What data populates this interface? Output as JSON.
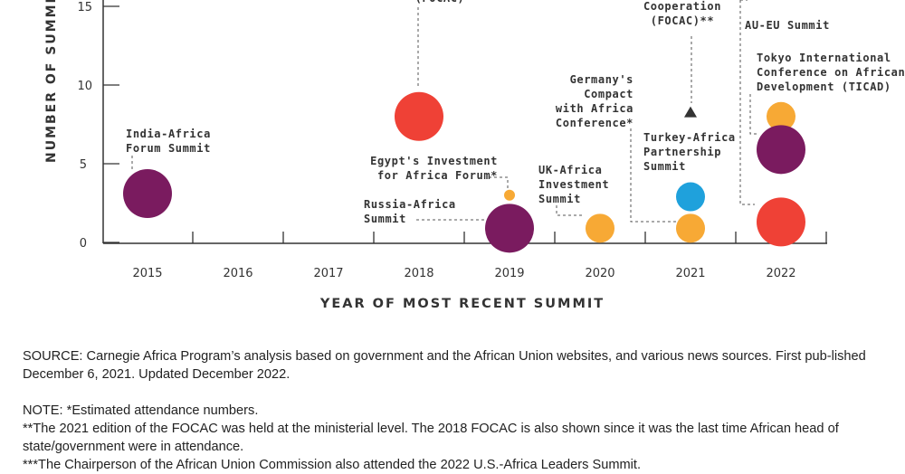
{
  "chart_data": {
    "type": "scatter",
    "xlabel": "YEAR OF MOST RECENT SUMMIT",
    "ylabel": "NUMBER OF SUMMIT",
    "x_ticks": [
      "2015",
      "2016",
      "2017",
      "2018",
      "2019",
      "2020",
      "2021",
      "2022"
    ],
    "y_ticks": [
      "0",
      "5",
      "10",
      "15"
    ],
    "ylim": [
      0,
      15.5
    ],
    "grid": false,
    "colors": {
      "purple": "#7a1b5f",
      "red": "#ef4136",
      "orange": "#f7a935",
      "blue": "#1fa1dc",
      "axis": "#333333",
      "leader": "#555555"
    },
    "points": [
      {
        "x": 2015,
        "y": 3.1,
        "size": "large",
        "color": "purple",
        "label": "India-Africa\nForum Summit"
      },
      {
        "x": 2018,
        "y": 8,
        "size": "large",
        "color": "red",
        "label": "(FOCAC)"
      },
      {
        "x": 2019,
        "y": 3,
        "size": "small",
        "color": "orange",
        "label": "Egypt's Investment\nfor Africa Forum*"
      },
      {
        "x": 2019,
        "y": 0.9,
        "size": "large",
        "color": "purple",
        "label": "Russia-Africa\nSummit"
      },
      {
        "x": 2020,
        "y": 0.9,
        "size": "medium",
        "color": "orange",
        "label": "UK-Africa\nInvestment\nSummit"
      },
      {
        "x": 2021,
        "y": 8.3,
        "size": "marker",
        "color": "axis",
        "label": "Cooperation\n(FOCAC)**"
      },
      {
        "x": 2021,
        "y": 2.9,
        "size": "medium",
        "color": "blue",
        "label": "Turkey-Africa\nPartnership\nSummit"
      },
      {
        "x": 2021,
        "y": 0.9,
        "size": "medium",
        "color": "orange",
        "label": "Germany's\nCompact\nwith Africa\nConference*"
      },
      {
        "x": 2022,
        "y": 8,
        "size": "medium",
        "color": "orange",
        "label": "Tokyo International\nConference on African\nDevelopment (TICAD)"
      },
      {
        "x": 2022,
        "y": 5.9,
        "size": "large",
        "color": "purple",
        "label": "AU-EU Summit"
      },
      {
        "x": 2022,
        "y": 1.3,
        "size": "large",
        "color": "red",
        "label": ""
      }
    ],
    "annotations": [
      "India-Africa\nForum Summit",
      "(FOCAC)",
      "Egypt's Investment\nfor Africa Forum*",
      "Russia-Africa\nSummit",
      "UK-Africa\nInvestment\nSummit",
      "Germany's\nCompact\nwith Africa\nConference*",
      "Cooperation\n(FOCAC)**",
      "Turkey-Africa\nPartnership\nSummit",
      "AU-EU Summit",
      "Tokyo International\nConference on African\nDevelopment (TICAD)"
    ]
  },
  "notes": {
    "source": "SOURCE: Carnegie Africa Program’s analysis based on government and the African Union websites, and various news sources. First pub-lished December 6, 2021. Updated December 2022.",
    "note1": "NOTE: *Estimated attendance numbers.",
    "note2": "**The 2021 edition of the FOCAC was held at the ministerial level. The 2018 FOCAC is also shown since it was the last time African head of state/government were in attendance.",
    "note3": "***The Chairperson of the African Union Commission also attended the 2022 U.S.-Africa Leaders Summit."
  }
}
